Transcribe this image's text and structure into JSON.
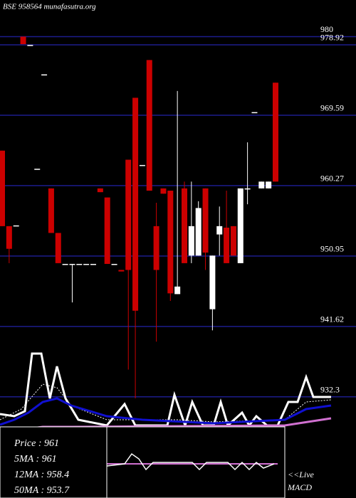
{
  "chart_data": {
    "type": "candlestick",
    "title": "BSE 958564 munafasutra.org",
    "ylim": [
      918.9,
      984.85
    ],
    "yticks": [
      980,
      978.92,
      969.59,
      960.27,
      950.95,
      941.62,
      932.3
    ],
    "grid": true,
    "up_color": "#ffffff",
    "down_color": "#cc0000",
    "grid_color": "#1c1c8c",
    "open": [
      964.9,
      954.9,
      955,
      980,
      978.9,
      962.5,
      975,
      959.9,
      954,
      949.9,
      949.9,
      949.9,
      949.9,
      949.9,
      959.9,
      958.7,
      949.9,
      949.1,
      963.7,
      971.9,
      963,
      976.9,
      954.9,
      959.9,
      959.6,
      945.9,
      959.9,
      951,
      951,
      959.9,
      943.9,
      953.8,
      954.7,
      954.9,
      950,
      959.9,
      970,
      959.9,
      959.9,
      973.9
    ],
    "high": [
      964.9,
      954.9,
      955,
      980,
      978.9,
      962.5,
      975,
      959.9,
      954,
      949.9,
      949.9,
      949.9,
      949.9,
      949.9,
      959.9,
      958.7,
      949.9,
      949.1,
      963.7,
      971.9,
      963,
      976.9,
      958,
      959.9,
      959.6,
      972.8,
      960.8,
      960.8,
      958.2,
      959.9,
      951,
      957.5,
      959.6,
      954.9,
      959.9,
      966,
      970,
      960.8,
      960.8,
      973.9
    ],
    "low": [
      954.9,
      950,
      955,
      979,
      978.9,
      962.5,
      975,
      954,
      950,
      949.9,
      944.8,
      949.9,
      949.9,
      949.9,
      959.4,
      949.9,
      949.9,
      948.9,
      935.9,
      932.1,
      963,
      959.6,
      939.6,
      959.2,
      945,
      945.9,
      950,
      950,
      951,
      949.1,
      941.1,
      951,
      950,
      951,
      950,
      957.8,
      970,
      959.9,
      959.9,
      960.8
    ],
    "close": [
      954.9,
      951.9,
      955,
      979,
      978.9,
      962.5,
      975,
      954,
      950,
      949.9,
      949.9,
      949.9,
      949.9,
      949.9,
      959.4,
      949.9,
      949.9,
      948.9,
      949.1,
      943.7,
      963,
      959.6,
      949.1,
      959.2,
      946,
      946.9,
      950,
      954.9,
      957.3,
      951.4,
      951,
      954.9,
      950,
      951,
      959.9,
      959.9,
      970,
      960.8,
      960.8,
      960.8
    ],
    "info": [
      "Price  : 961",
      "5MA : 961",
      "12MA : 958.4",
      "50MA : 953.7"
    ],
    "live_label": "<<Live",
    "indicator_label": "MACD"
  }
}
